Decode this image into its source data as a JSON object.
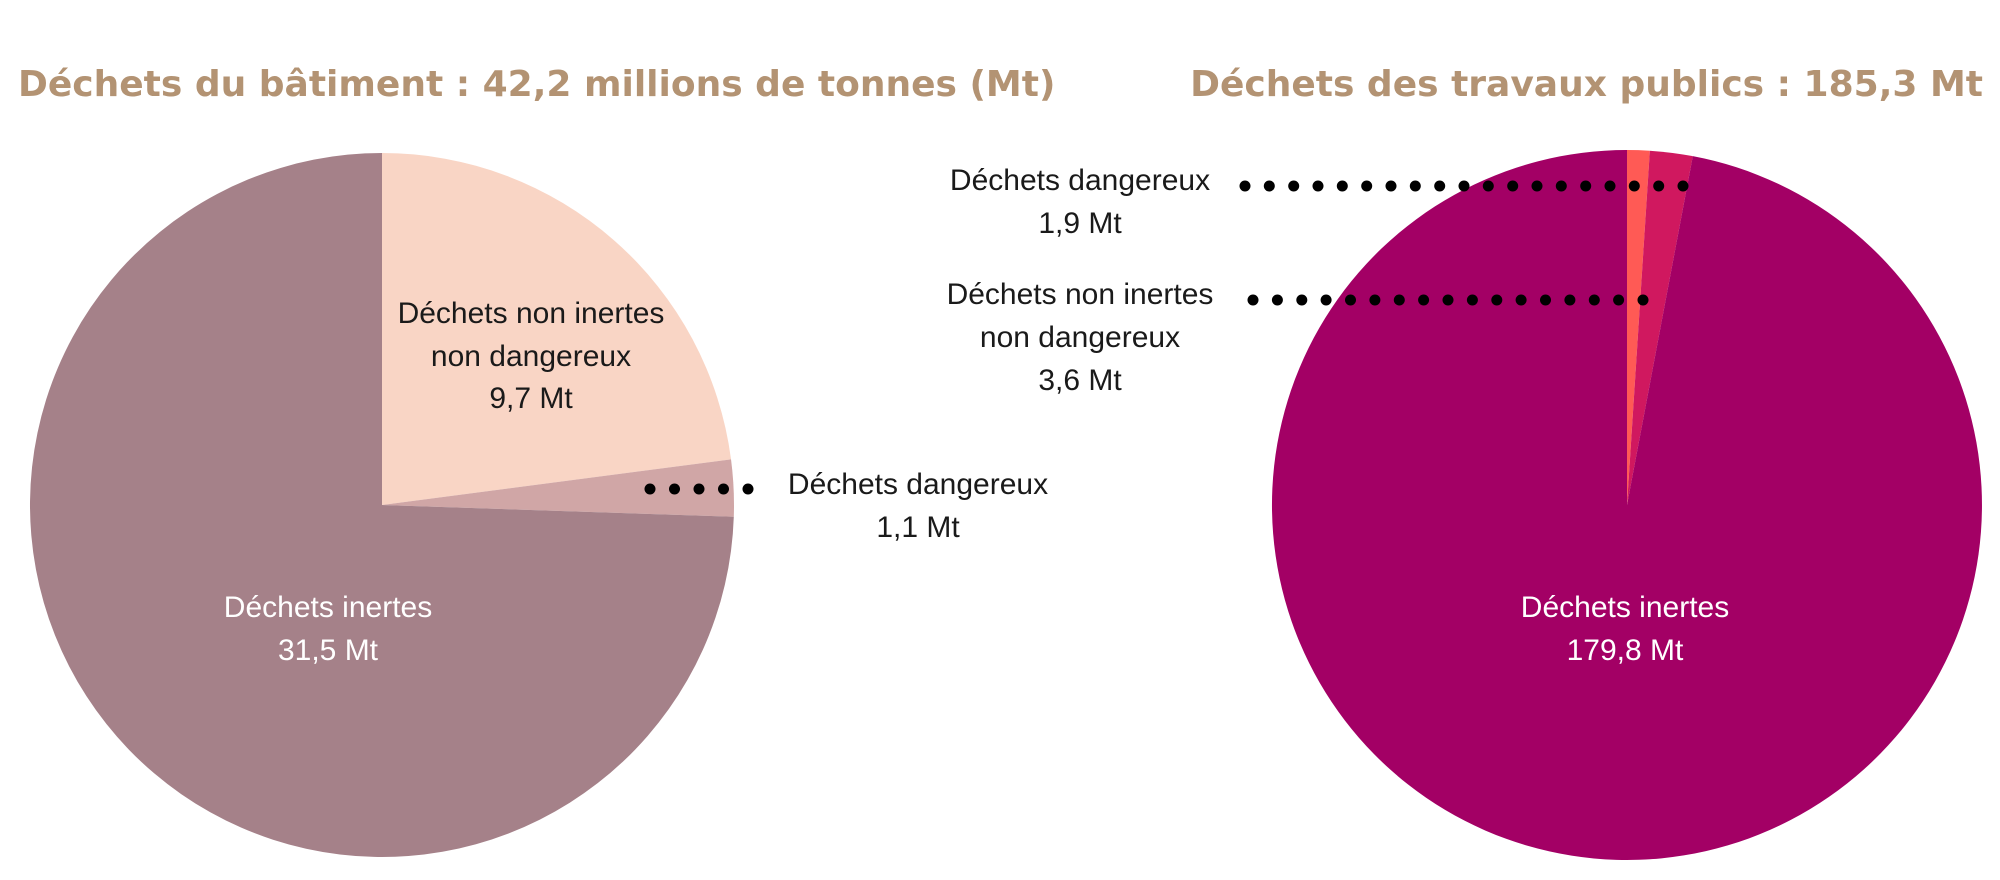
{
  "chart_data": [
    {
      "type": "pie",
      "title": "Déchets du bâtiment : 42,2 millions de tonnes  (Mt)",
      "unit": "Mt",
      "slices": [
        {
          "label": "Déchets non inertes",
          "label2": "non dangereux",
          "value": 9.7,
          "value_text": "9,7 Mt",
          "color": "#f9d5c5",
          "text_color": "#1a1a1a"
        },
        {
          "label": "Déchets dangereux",
          "value": 1.1,
          "value_text": "1,1 Mt",
          "color": "#d0a6a6",
          "text_color": "#1a1a1a"
        },
        {
          "label": "Déchets inertes",
          "value": 31.5,
          "value_text": "31,5 Mt",
          "color": "#a58189",
          "text_color": "#ffffff"
        }
      ]
    },
    {
      "type": "pie",
      "title": "Déchets des travaux publics : 185,3 Mt",
      "unit": "Mt",
      "slices": [
        {
          "label": "Déchets dangereux",
          "value": 1.9,
          "value_text": "1,9 Mt",
          "color": "#ff5a55",
          "text_color": "#1a1a1a"
        },
        {
          "label": "Déchets non inertes",
          "label2": "non dangereux",
          "value": 3.6,
          "value_text": "3,6 Mt",
          "color": "#d0185f",
          "text_color": "#1a1a1a"
        },
        {
          "label": "Déchets inertes",
          "value": 179.8,
          "value_text": "179,8 Mt",
          "color": "#a30065",
          "text_color": "#ffffff"
        }
      ]
    }
  ],
  "colors": {
    "title": "#b39373",
    "leader_dots": "#000000"
  }
}
